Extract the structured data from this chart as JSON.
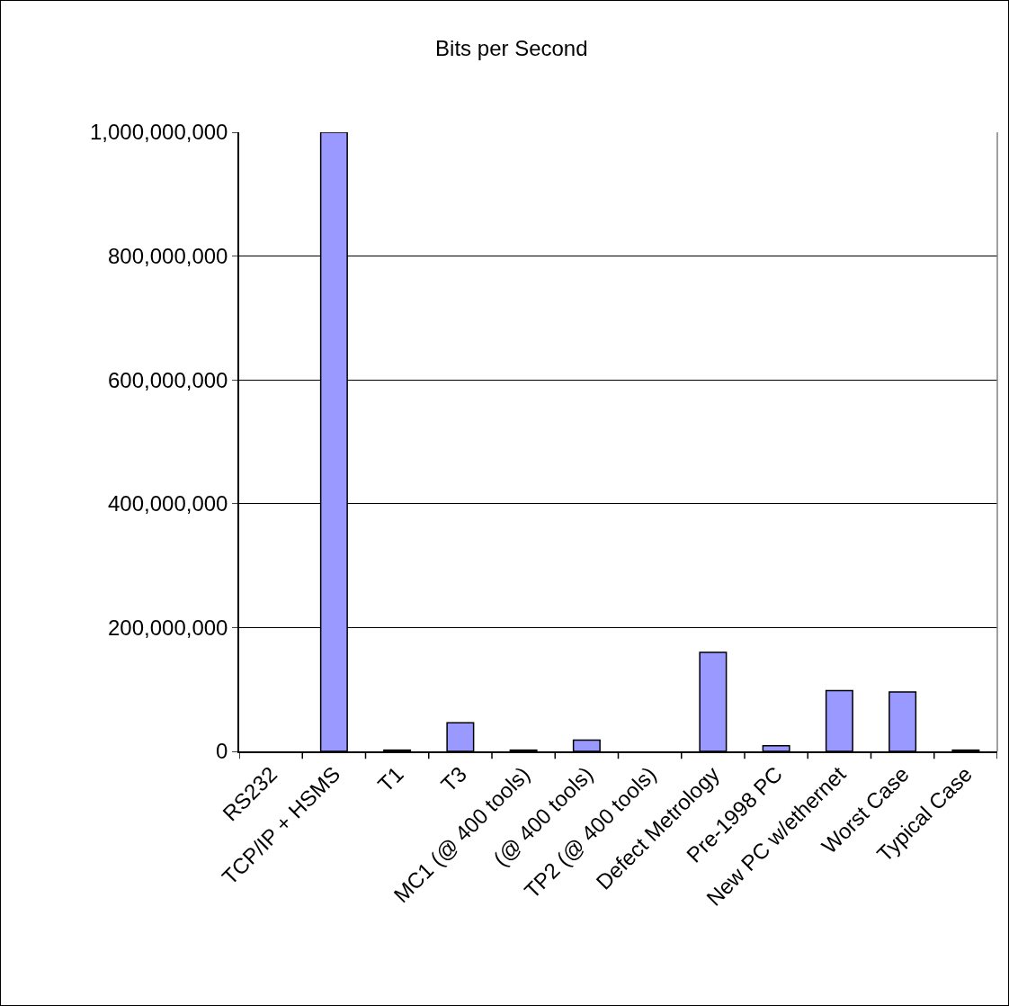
{
  "chart_data": {
    "type": "bar",
    "title": "Bits per Second",
    "categories": [
      "RS232",
      "TCP/IP + HSMS",
      "T1",
      "T3",
      "MC1 (@ 400 tools)",
      "(@ 400 tools)",
      "TP2 (@ 400 tools)",
      "Defect Metrology",
      "Pre-1998 PC",
      "New PC w/ethernet",
      "Worst Case",
      "Typical Case"
    ],
    "values": [
      null,
      1000000000,
      2000000,
      46000000,
      2000000,
      18000000,
      null,
      160000000,
      9000000,
      98000000,
      96000000,
      2000000
    ],
    "color": "#9999ff",
    "ylim": [
      0,
      1000000000
    ],
    "yticks": [
      {
        "value": 0,
        "label": "0"
      },
      {
        "value": 200000000,
        "label": "200,000,000"
      },
      {
        "value": 400000000,
        "label": "400,000,000"
      },
      {
        "value": 600000000,
        "label": "600,000,000"
      },
      {
        "value": 800000000,
        "label": "800,000,000"
      },
      {
        "value": 1000000000,
        "label": "1,000,000,000"
      }
    ],
    "grid": "y"
  }
}
